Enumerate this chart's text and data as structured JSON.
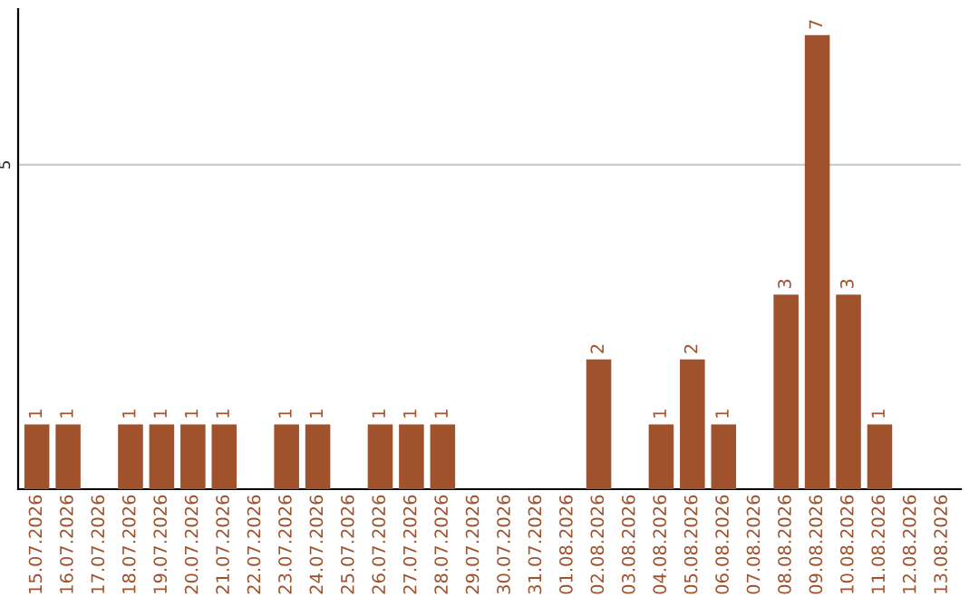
{
  "chart_data": {
    "type": "bar",
    "categories": [
      "15.07.2026",
      "16.07.2026",
      "17.07.2026",
      "18.07.2026",
      "19.07.2026",
      "20.07.2026",
      "21.07.2026",
      "22.07.2026",
      "23.07.2026",
      "24.07.2026",
      "25.07.2026",
      "26.07.2026",
      "27.07.2026",
      "28.07.2026",
      "29.07.2026",
      "30.07.2026",
      "31.07.2026",
      "01.08.2026",
      "02.08.2026",
      "03.08.2026",
      "04.08.2026",
      "05.08.2026",
      "06.08.2026",
      "07.08.2026",
      "08.08.2026",
      "09.08.2026",
      "10.08.2026",
      "11.08.2026",
      "12.08.2026",
      "13.08.2026"
    ],
    "values": [
      1,
      1,
      0,
      1,
      1,
      1,
      1,
      0,
      1,
      1,
      0,
      1,
      1,
      1,
      0,
      0,
      0,
      0,
      2,
      0,
      1,
      2,
      1,
      0,
      3,
      7,
      3,
      1,
      0,
      0
    ],
    "value_labels": [
      "1",
      "1",
      null,
      "1",
      "1",
      "1",
      "1",
      null,
      "1",
      "1",
      null,
      "1",
      "1",
      "1",
      null,
      null,
      null,
      null,
      "2",
      null,
      "1",
      "2",
      "1",
      null,
      "3",
      "7",
      "3",
      "1",
      null,
      null
    ],
    "color": "#a0522d",
    "ylim": [
      0,
      7.4
    ],
    "yticks": [
      5
    ],
    "grid": "y"
  }
}
